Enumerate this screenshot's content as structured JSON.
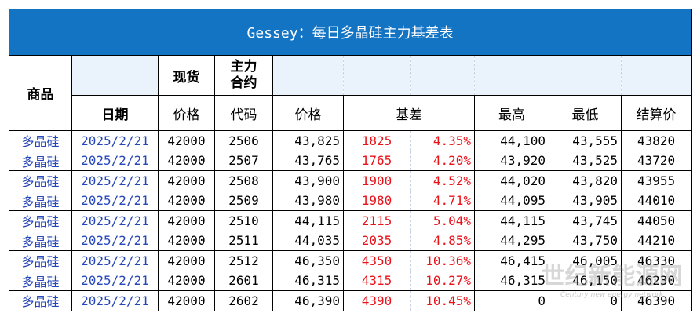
{
  "title": "Gessey：每日多晶硅主力基差表",
  "header": {
    "product": "商品",
    "spot": "现货",
    "main_contract": "主力\n合约",
    "date": "日期",
    "spot_price": "价格",
    "code": "代码",
    "futures_price": "价格",
    "basis": "基差",
    "high": "最高",
    "low": "最低",
    "settle": "结算价"
  },
  "rows": [
    {
      "product": "多晶硅",
      "date": "2025/2/21",
      "spot": "42000",
      "code": "2506",
      "price": "43,825",
      "basis": "1825",
      "basis_pct": "4.35%",
      "high": "44,100",
      "low": "43,555",
      "settle": "43820"
    },
    {
      "product": "多晶硅",
      "date": "2025/2/21",
      "spot": "42000",
      "code": "2507",
      "price": "43,765",
      "basis": "1765",
      "basis_pct": "4.20%",
      "high": "43,920",
      "low": "43,525",
      "settle": "43720"
    },
    {
      "product": "多晶硅",
      "date": "2025/2/21",
      "spot": "42000",
      "code": "2508",
      "price": "43,900",
      "basis": "1900",
      "basis_pct": "4.52%",
      "high": "44,020",
      "low": "43,820",
      "settle": "43955"
    },
    {
      "product": "多晶硅",
      "date": "2025/2/21",
      "spot": "42000",
      "code": "2509",
      "price": "43,980",
      "basis": "1980",
      "basis_pct": "4.71%",
      "high": "44,095",
      "low": "43,905",
      "settle": "44010"
    },
    {
      "product": "多晶硅",
      "date": "2025/2/21",
      "spot": "42000",
      "code": "2510",
      "price": "44,115",
      "basis": "2115",
      "basis_pct": "5.04%",
      "high": "44,115",
      "low": "43,745",
      "settle": "44050"
    },
    {
      "product": "多晶硅",
      "date": "2025/2/21",
      "spot": "42000",
      "code": "2511",
      "price": "44,035",
      "basis": "2035",
      "basis_pct": "4.85%",
      "high": "44,295",
      "low": "43,750",
      "settle": "44210"
    },
    {
      "product": "多晶硅",
      "date": "2025/2/21",
      "spot": "42000",
      "code": "2512",
      "price": "46,350",
      "basis": "4350",
      "basis_pct": "10.36%",
      "high": "46,415",
      "low": "46,005",
      "settle": "46330"
    },
    {
      "product": "多晶硅",
      "date": "2025/2/21",
      "spot": "42000",
      "code": "2601",
      "price": "46,315",
      "basis": "4315",
      "basis_pct": "10.27%",
      "high": "46,315",
      "low": "46,150",
      "settle": "46230"
    },
    {
      "product": "多晶硅",
      "date": "2025/2/21",
      "spot": "42000",
      "code": "2602",
      "price": "46,390",
      "basis": "4390",
      "basis_pct": "10.45%",
      "high": "0",
      "low": "0",
      "settle": "46390"
    }
  ],
  "watermark": {
    "main": "世纪新能源网",
    "sub": "Century new energy network"
  },
  "colors": {
    "title_bg": "#1474c4",
    "product_text": "#2747b8",
    "basis_text": "#e8131a"
  }
}
